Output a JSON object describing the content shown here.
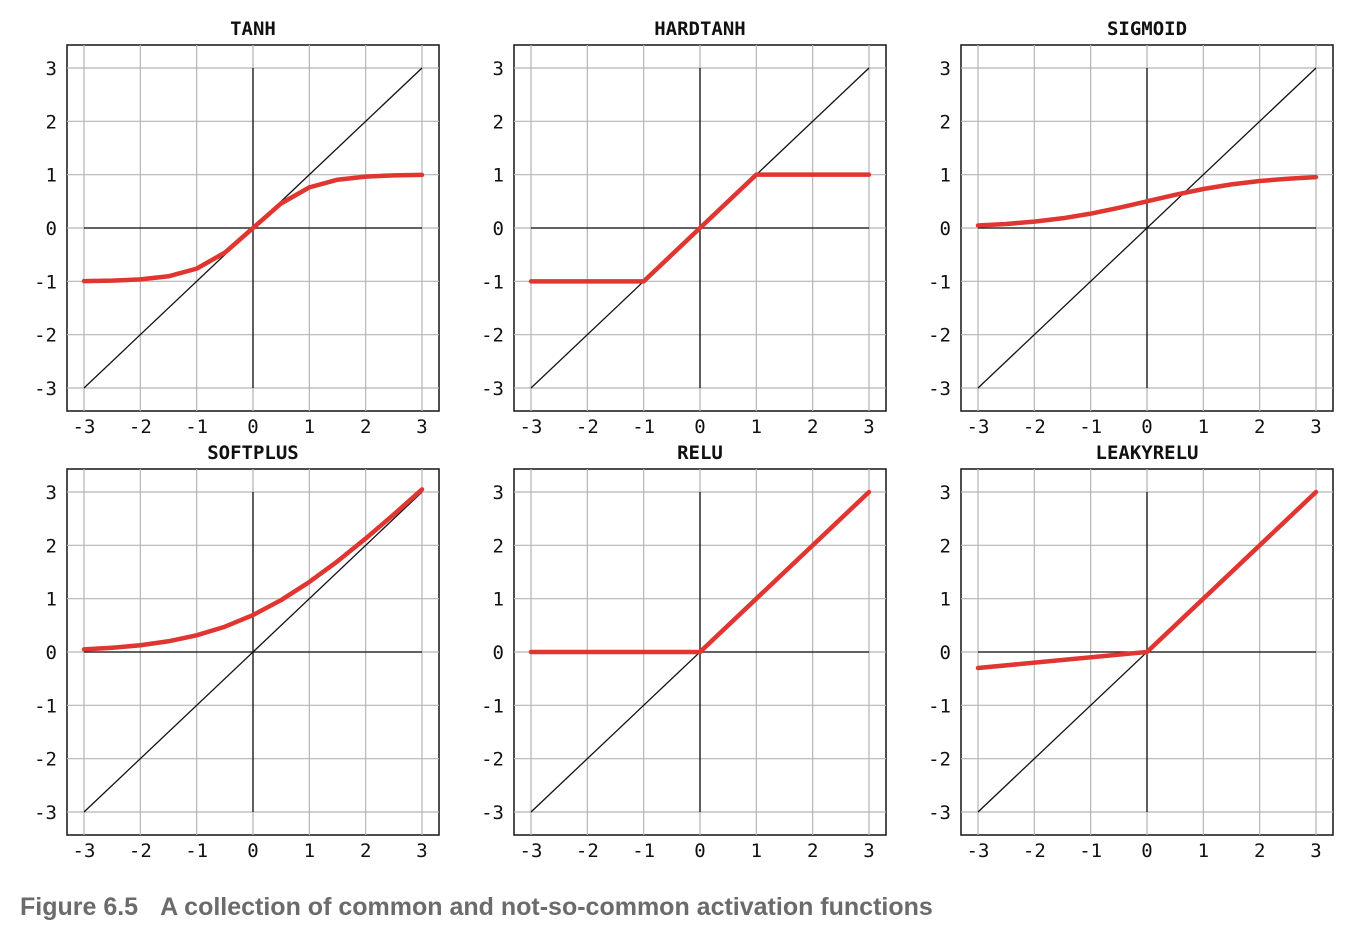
{
  "figure": {
    "caption_label": "Figure 6.5",
    "caption_text": "A collection of common and not-so-common activation functions"
  },
  "colors": {
    "curve": "#e03530",
    "identity": "#111111",
    "grid": "#b5b5b5",
    "frame": "#222222"
  },
  "chart_data": [
    {
      "type": "line",
      "title": "TANH",
      "function": "tanh",
      "xlim": [
        -3,
        3
      ],
      "ylim": [
        -3,
        3
      ],
      "grid": true,
      "xticks": [
        "-3",
        "-2",
        "-1",
        "0",
        "1",
        "2",
        "3"
      ],
      "yticks": [
        "3",
        "2",
        "1",
        "0",
        "-1",
        "-2",
        "-3"
      ],
      "reference_line": "y = x",
      "x": [
        -3,
        -2.5,
        -2,
        -1.5,
        -1,
        -0.5,
        0,
        0.5,
        1,
        1.5,
        2,
        2.5,
        3
      ],
      "y": [
        -0.995,
        -0.987,
        -0.964,
        -0.905,
        -0.762,
        -0.462,
        0,
        0.462,
        0.762,
        0.905,
        0.964,
        0.987,
        0.995
      ]
    },
    {
      "type": "line",
      "title": "HARDTANH",
      "function": "hardtanh",
      "xlim": [
        -3,
        3
      ],
      "ylim": [
        -3,
        3
      ],
      "grid": true,
      "xticks": [
        "-3",
        "-2",
        "-1",
        "0",
        "1",
        "2",
        "3"
      ],
      "yticks": [
        "3",
        "2",
        "1",
        "0",
        "-1",
        "-2",
        "-3"
      ],
      "reference_line": "y = x",
      "x": [
        -3,
        -1,
        1,
        3
      ],
      "y": [
        -1,
        -1,
        1,
        1
      ]
    },
    {
      "type": "line",
      "title": "SIGMOID",
      "function": "sigmoid",
      "xlim": [
        -3,
        3
      ],
      "ylim": [
        -3,
        3
      ],
      "grid": true,
      "xticks": [
        "-3",
        "-2",
        "-1",
        "0",
        "1",
        "2",
        "3"
      ],
      "yticks": [
        "3",
        "2",
        "1",
        "0",
        "-1",
        "-2",
        "-3"
      ],
      "reference_line": "y = x",
      "x": [
        -3,
        -2.5,
        -2,
        -1.5,
        -1,
        -0.5,
        0,
        0.5,
        1,
        1.5,
        2,
        2.5,
        3
      ],
      "y": [
        0.047,
        0.076,
        0.119,
        0.182,
        0.269,
        0.378,
        0.5,
        0.622,
        0.731,
        0.818,
        0.881,
        0.924,
        0.953
      ]
    },
    {
      "type": "line",
      "title": "SOFTPLUS",
      "function": "softplus",
      "xlim": [
        -3,
        3
      ],
      "ylim": [
        -3,
        3
      ],
      "grid": true,
      "xticks": [
        "-3",
        "-2",
        "-1",
        "0",
        "1",
        "2",
        "3"
      ],
      "yticks": [
        "3",
        "2",
        "1",
        "0",
        "-1",
        "-2",
        "-3"
      ],
      "reference_line": "y = x",
      "x": [
        -3,
        -2.5,
        -2,
        -1.5,
        -1,
        -0.5,
        0,
        0.5,
        1,
        1.5,
        2,
        2.5,
        3
      ],
      "y": [
        0.049,
        0.079,
        0.127,
        0.201,
        0.313,
        0.474,
        0.693,
        0.974,
        1.313,
        1.701,
        2.127,
        2.579,
        3.049
      ]
    },
    {
      "type": "line",
      "title": "RELU",
      "function": "relu",
      "xlim": [
        -3,
        3
      ],
      "ylim": [
        -3,
        3
      ],
      "grid": true,
      "xticks": [
        "-3",
        "-2",
        "-1",
        "0",
        "1",
        "2",
        "3"
      ],
      "yticks": [
        "3",
        "2",
        "1",
        "0",
        "-1",
        "-2",
        "-3"
      ],
      "reference_line": "y = x",
      "x": [
        -3,
        0,
        3
      ],
      "y": [
        0,
        0,
        3
      ]
    },
    {
      "type": "line",
      "title": "LEAKYRELU",
      "function": "leakyrelu",
      "xlim": [
        -3,
        3
      ],
      "ylim": [
        -3,
        3
      ],
      "grid": true,
      "xticks": [
        "-3",
        "-2",
        "-1",
        "0",
        "1",
        "2",
        "3"
      ],
      "yticks": [
        "3",
        "2",
        "1",
        "0",
        "-1",
        "-2",
        "-3"
      ],
      "reference_line": "y = x",
      "x": [
        -3,
        0,
        3
      ],
      "y": [
        -0.3,
        0,
        3
      ]
    }
  ]
}
